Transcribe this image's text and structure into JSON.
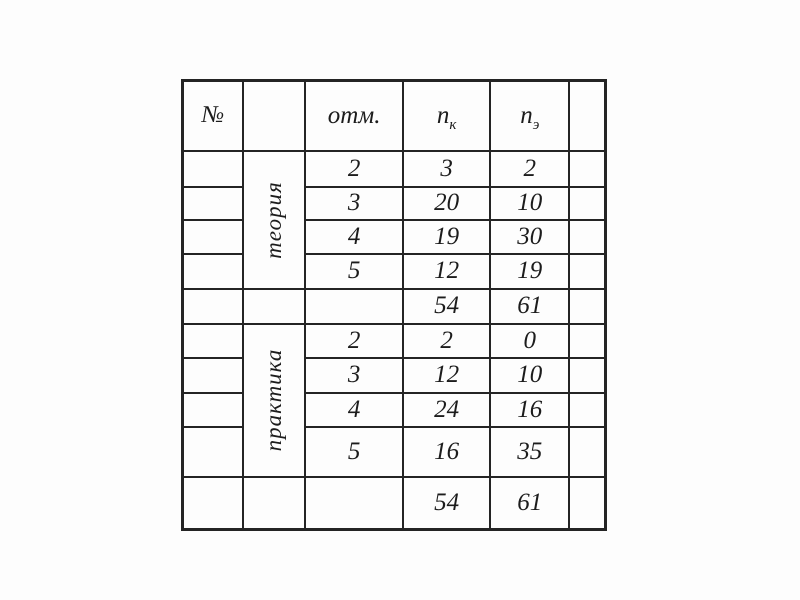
{
  "table": {
    "header": {
      "no": "№",
      "group": "",
      "otm": "отм.",
      "nk_base": "n",
      "nk_sub": "к",
      "ne_base": "n",
      "ne_sub": "э"
    },
    "sections": [
      {
        "label": "теория",
        "rows": [
          [
            "2",
            "3",
            "2"
          ],
          [
            "3",
            "20",
            "10"
          ],
          [
            "4",
            "19",
            "30"
          ],
          [
            "5",
            "12",
            "19"
          ]
        ],
        "total": [
          "54",
          "61"
        ]
      },
      {
        "label": "практика",
        "rows": [
          [
            "2",
            "2",
            "0"
          ],
          [
            "3",
            "12",
            "10"
          ],
          [
            "4",
            "24",
            "16"
          ],
          [
            "5",
            "16",
            "35"
          ]
        ],
        "total": [
          "54",
          "61"
        ]
      }
    ]
  },
  "chart_data": {
    "type": "table",
    "columns": [
      "№",
      "",
      "отм.",
      "n_к",
      "n_э"
    ],
    "groups": [
      {
        "name": "теория",
        "rows": [
          [
            2,
            3,
            2
          ],
          [
            3,
            20,
            10
          ],
          [
            4,
            19,
            30
          ],
          [
            5,
            12,
            19
          ]
        ],
        "total": {
          "n_к": 54,
          "n_э": 61
        }
      },
      {
        "name": "практика",
        "rows": [
          [
            2,
            2,
            0
          ],
          [
            3,
            12,
            10
          ],
          [
            4,
            24,
            16
          ],
          [
            5,
            16,
            35
          ]
        ],
        "total": {
          "n_к": 54,
          "n_э": 61
        }
      }
    ]
  }
}
